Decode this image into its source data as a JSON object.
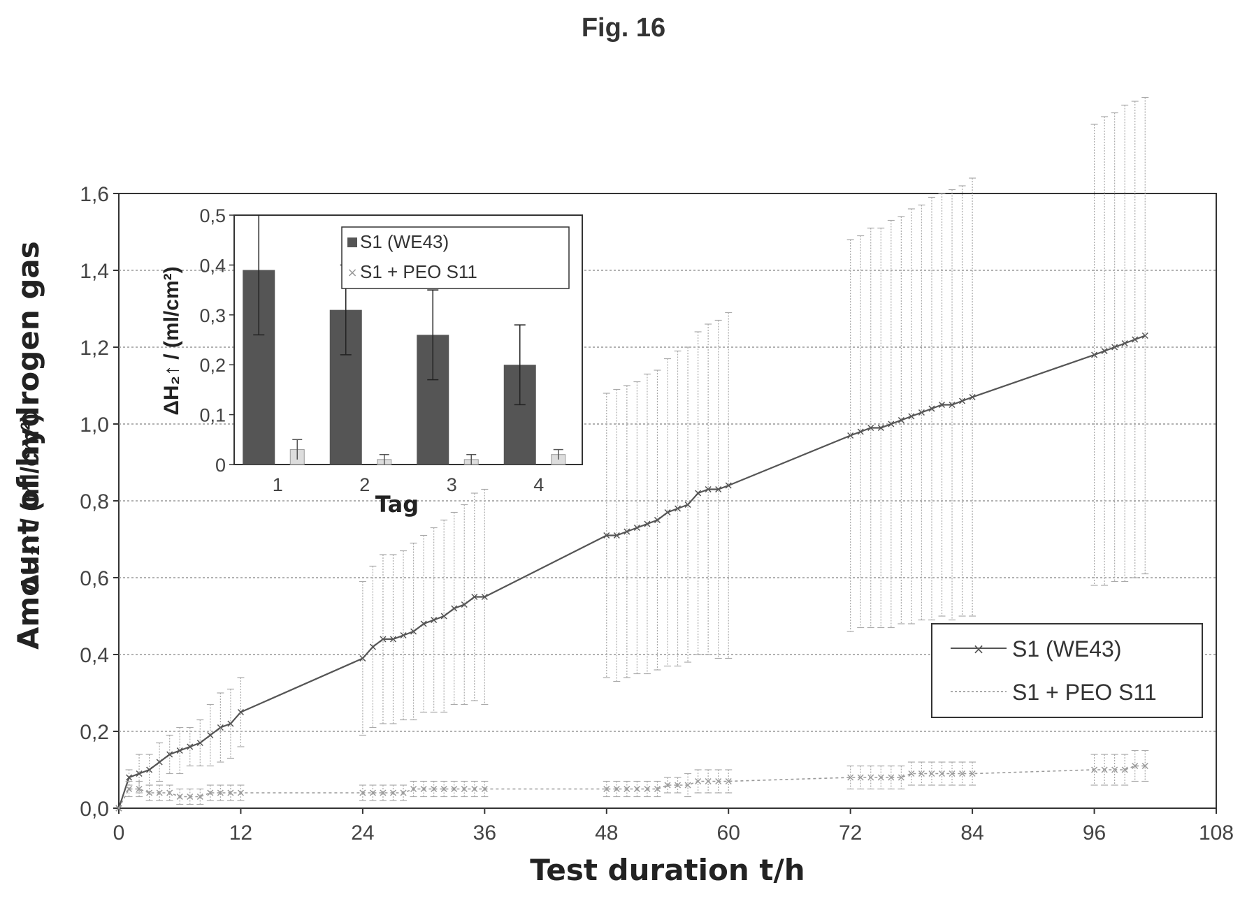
{
  "figure": {
    "title": "Fig. 16"
  },
  "colors": {
    "series_we43": "#555555",
    "series_peo": "#9a9a9a",
    "bar_we43": "#555555",
    "grid": "#999999",
    "axis": "#333333"
  },
  "chart_data": [
    {
      "type": "line",
      "xlabel": "Test duration t/h",
      "ylabel_prefix": "Amount of hydrogen gas",
      "ylabel_symbol": "ΔH₂↑ / (ml/cm²)",
      "xlim": [
        0,
        108
      ],
      "ylim": [
        0,
        1.6
      ],
      "xticks": [
        "0",
        "12",
        "24",
        "36",
        "48",
        "60",
        "72",
        "84",
        "96",
        "108"
      ],
      "yticks": [
        "0,0",
        "0,2",
        "0,4",
        "0,6",
        "0,8",
        "1,0",
        "1,2",
        "1,4",
        "1,6"
      ],
      "grid": "horizontal dotted",
      "legend_position": "bottom-right",
      "series": [
        {
          "name": "S1 (WE43)",
          "marker": "x",
          "points": [
            [
              0,
              0.0,
              0.0
            ],
            [
              1,
              0.08,
              0.02
            ],
            [
              2,
              0.09,
              0.05
            ],
            [
              3,
              0.1,
              0.04
            ],
            [
              4,
              0.12,
              0.05
            ],
            [
              5,
              0.14,
              0.05
            ],
            [
              6,
              0.15,
              0.06
            ],
            [
              7,
              0.16,
              0.05
            ],
            [
              8,
              0.17,
              0.06
            ],
            [
              9,
              0.19,
              0.08
            ],
            [
              10,
              0.21,
              0.09
            ],
            [
              11,
              0.22,
              0.09
            ],
            [
              12,
              0.25,
              0.09
            ],
            [
              24,
              0.39,
              0.2
            ],
            [
              25,
              0.42,
              0.21
            ],
            [
              26,
              0.44,
              0.22
            ],
            [
              27,
              0.44,
              0.22
            ],
            [
              28,
              0.45,
              0.22
            ],
            [
              29,
              0.46,
              0.23
            ],
            [
              30,
              0.48,
              0.23
            ],
            [
              31,
              0.49,
              0.24
            ],
            [
              32,
              0.5,
              0.25
            ],
            [
              33,
              0.52,
              0.25
            ],
            [
              34,
              0.53,
              0.26
            ],
            [
              35,
              0.55,
              0.27
            ],
            [
              36,
              0.55,
              0.28
            ],
            [
              48,
              0.71,
              0.37
            ],
            [
              49,
              0.71,
              0.38
            ],
            [
              50,
              0.72,
              0.38
            ],
            [
              51,
              0.73,
              0.38
            ],
            [
              52,
              0.74,
              0.39
            ],
            [
              53,
              0.75,
              0.39
            ],
            [
              54,
              0.77,
              0.4
            ],
            [
              55,
              0.78,
              0.41
            ],
            [
              56,
              0.79,
              0.41
            ],
            [
              57,
              0.82,
              0.42
            ],
            [
              58,
              0.83,
              0.43
            ],
            [
              59,
              0.83,
              0.44
            ],
            [
              60,
              0.84,
              0.45
            ],
            [
              72,
              0.97,
              0.51
            ],
            [
              73,
              0.98,
              0.51
            ],
            [
              74,
              0.99,
              0.52
            ],
            [
              75,
              0.99,
              0.52
            ],
            [
              76,
              1.0,
              0.53
            ],
            [
              77,
              1.01,
              0.53
            ],
            [
              78,
              1.02,
              0.54
            ],
            [
              79,
              1.03,
              0.54
            ],
            [
              80,
              1.04,
              0.55
            ],
            [
              81,
              1.05,
              0.55
            ],
            [
              82,
              1.05,
              0.56
            ],
            [
              83,
              1.06,
              0.56
            ],
            [
              84,
              1.07,
              0.57
            ],
            [
              96,
              1.18,
              0.6
            ],
            [
              97,
              1.19,
              0.61
            ],
            [
              98,
              1.2,
              0.61
            ],
            [
              99,
              1.21,
              0.62
            ],
            [
              100,
              1.22,
              0.62
            ],
            [
              101,
              1.23,
              0.62
            ]
          ]
        },
        {
          "name": "S1 + PEO S11",
          "marker": "x",
          "points": [
            [
              0,
              0.0,
              0.0
            ],
            [
              1,
              0.05,
              0.02
            ],
            [
              2,
              0.05,
              0.02
            ],
            [
              3,
              0.04,
              0.02
            ],
            [
              4,
              0.04,
              0.02
            ],
            [
              5,
              0.04,
              0.02
            ],
            [
              6,
              0.03,
              0.02
            ],
            [
              7,
              0.03,
              0.02
            ],
            [
              8,
              0.03,
              0.02
            ],
            [
              9,
              0.04,
              0.02
            ],
            [
              10,
              0.04,
              0.02
            ],
            [
              11,
              0.04,
              0.02
            ],
            [
              12,
              0.04,
              0.02
            ],
            [
              24,
              0.04,
              0.02
            ],
            [
              25,
              0.04,
              0.02
            ],
            [
              26,
              0.04,
              0.02
            ],
            [
              27,
              0.04,
              0.02
            ],
            [
              28,
              0.04,
              0.02
            ],
            [
              29,
              0.05,
              0.02
            ],
            [
              30,
              0.05,
              0.02
            ],
            [
              31,
              0.05,
              0.02
            ],
            [
              32,
              0.05,
              0.02
            ],
            [
              33,
              0.05,
              0.02
            ],
            [
              34,
              0.05,
              0.02
            ],
            [
              35,
              0.05,
              0.02
            ],
            [
              36,
              0.05,
              0.02
            ],
            [
              48,
              0.05,
              0.02
            ],
            [
              49,
              0.05,
              0.02
            ],
            [
              50,
              0.05,
              0.02
            ],
            [
              51,
              0.05,
              0.02
            ],
            [
              52,
              0.05,
              0.02
            ],
            [
              53,
              0.05,
              0.02
            ],
            [
              54,
              0.06,
              0.02
            ],
            [
              55,
              0.06,
              0.02
            ],
            [
              56,
              0.06,
              0.03
            ],
            [
              57,
              0.07,
              0.03
            ],
            [
              58,
              0.07,
              0.03
            ],
            [
              59,
              0.07,
              0.03
            ],
            [
              60,
              0.07,
              0.03
            ],
            [
              72,
              0.08,
              0.03
            ],
            [
              73,
              0.08,
              0.03
            ],
            [
              74,
              0.08,
              0.03
            ],
            [
              75,
              0.08,
              0.03
            ],
            [
              76,
              0.08,
              0.03
            ],
            [
              77,
              0.08,
              0.03
            ],
            [
              78,
              0.09,
              0.03
            ],
            [
              79,
              0.09,
              0.03
            ],
            [
              80,
              0.09,
              0.03
            ],
            [
              81,
              0.09,
              0.03
            ],
            [
              82,
              0.09,
              0.03
            ],
            [
              83,
              0.09,
              0.03
            ],
            [
              84,
              0.09,
              0.03
            ],
            [
              96,
              0.1,
              0.04
            ],
            [
              97,
              0.1,
              0.04
            ],
            [
              98,
              0.1,
              0.04
            ],
            [
              99,
              0.1,
              0.04
            ],
            [
              100,
              0.11,
              0.04
            ],
            [
              101,
              0.11,
              0.04
            ]
          ]
        }
      ]
    },
    {
      "type": "bar",
      "placement": "inset, top-left of main plot",
      "xlabel": "Tag",
      "ylabel": "ΔH₂↑ / (ml/cm²)",
      "categories": [
        "1",
        "2",
        "3",
        "4"
      ],
      "ylim": [
        0,
        0.5
      ],
      "yticks": [
        "0",
        "0,1",
        "0,2",
        "0,3",
        "0,4",
        "0,5"
      ],
      "legend_position": "top-right",
      "series": [
        {
          "name": "S1 (WE43)",
          "values": [
            0.39,
            0.31,
            0.26,
            0.2
          ],
          "errors": [
            0.13,
            0.09,
            0.09,
            0.08
          ]
        },
        {
          "name": "S1 + PEO S11",
          "values": [
            0.03,
            0.01,
            0.01,
            0.02
          ],
          "errors": [
            0.02,
            0.01,
            0.01,
            0.01
          ]
        }
      ]
    }
  ]
}
